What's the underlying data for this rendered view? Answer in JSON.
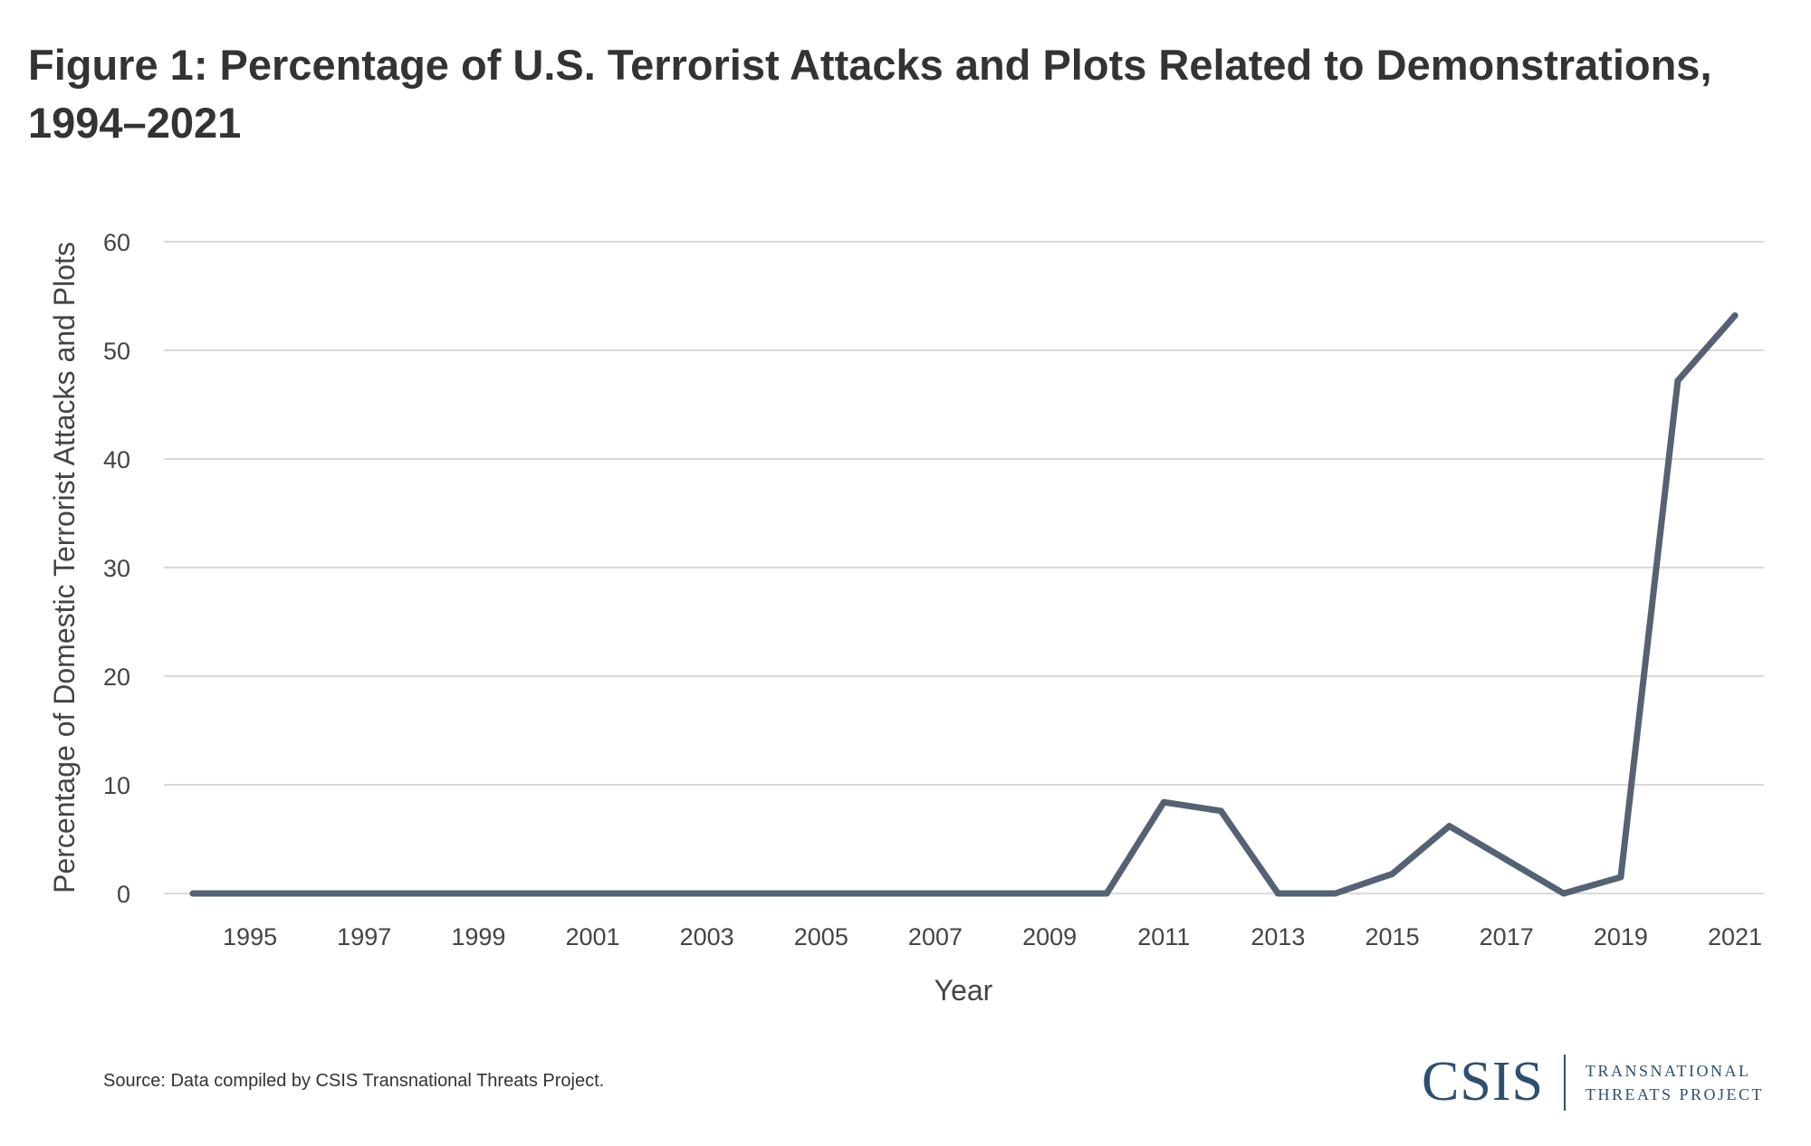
{
  "chart_data": {
    "type": "line",
    "title": "Figure 1: Percentage of U.S. Terrorist Attacks and Plots Related to Demonstrations, 1994–2021",
    "xlabel": "Year",
    "ylabel": "Percentage of Domestic Terrorist Attacks and Plots",
    "ylim": [
      0,
      60
    ],
    "yticks": [
      "0",
      "10",
      "20",
      "30",
      "40",
      "50",
      "60"
    ],
    "xticks": [
      "1995",
      "1997",
      "1999",
      "2001",
      "2003",
      "2005",
      "2007",
      "2009",
      "2011",
      "2013",
      "2015",
      "2017",
      "2019",
      "2021"
    ],
    "grid": true,
    "line_color": "#556274",
    "series": [
      {
        "name": "Percentage",
        "x": [
          1994,
          1995,
          1996,
          1997,
          1998,
          1999,
          2000,
          2001,
          2002,
          2003,
          2004,
          2005,
          2006,
          2007,
          2008,
          2009,
          2010,
          2011,
          2012,
          2013,
          2014,
          2015,
          2016,
          2017,
          2018,
          2019,
          2020,
          2021
        ],
        "values": [
          0,
          0,
          0,
          0,
          0,
          0,
          0,
          0,
          0,
          0,
          0,
          0,
          0,
          0,
          0,
          0,
          0,
          8.4,
          7.6,
          0,
          0,
          1.8,
          6.2,
          3.1,
          0,
          1.5,
          47.2,
          53.2
        ]
      }
    ]
  },
  "source": "Source: Data compiled by CSIS Transnational Threats Project.",
  "logo": {
    "main": "CSIS",
    "line1": "TRANSNATIONAL",
    "line2": "THREATS PROJECT"
  }
}
